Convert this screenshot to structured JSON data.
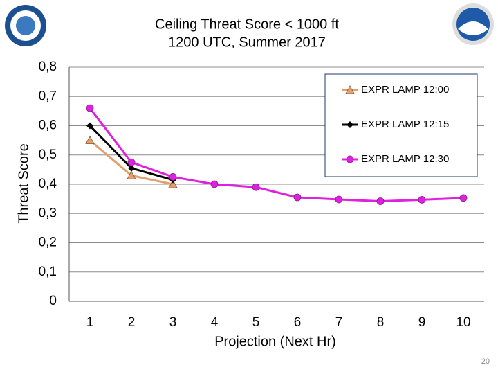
{
  "chart_data": {
    "type": "line",
    "title": "Ceiling Threat Score < 1000 ft",
    "subtitle": "1200 UTC, Summer 2017",
    "x_label": "Projection (Next Hr)",
    "y_label": "Threat Score",
    "page_number": "20",
    "categories": [
      "1",
      "2",
      "3",
      "4",
      "5",
      "6",
      "7",
      "8",
      "9",
      "10"
    ],
    "series": [
      {
        "name": "EXPR LAMP 12:00",
        "color": "#e0a070",
        "marker": "triangle",
        "values": [
          0.55,
          0.43,
          0.4,
          null,
          null,
          null,
          null,
          null,
          null,
          null
        ]
      },
      {
        "name": "EXPR LAMP 12:15",
        "color": "#000000",
        "marker": "diamond",
        "values": [
          0.6,
          0.455,
          0.415,
          null,
          null,
          null,
          null,
          null,
          null,
          null
        ]
      },
      {
        "name": "EXPR LAMP 12:30",
        "color": "#e020e0",
        "marker": "circle",
        "values": [
          0.66,
          0.475,
          0.425,
          0.4,
          0.39,
          0.355,
          0.348,
          0.342,
          0.347,
          0.353
        ]
      }
    ],
    "ylim": [
      0,
      0.8
    ],
    "yticks": [
      0,
      {
        "value": 0.1,
        "label": "0,1"
      },
      {
        "value": 0.2,
        "label": "0,2"
      },
      {
        "value": 0.3,
        "label": "0,3"
      },
      {
        "value": 0.4,
        "label": "0,4"
      },
      {
        "value": 0.5,
        "label": "0,5"
      },
      {
        "value": 0.6,
        "label": "0,6"
      },
      {
        "value": 0.7,
        "label": "0,7"
      },
      {
        "value": 0.8,
        "label": "0,8"
      }
    ],
    "grid": true
  }
}
